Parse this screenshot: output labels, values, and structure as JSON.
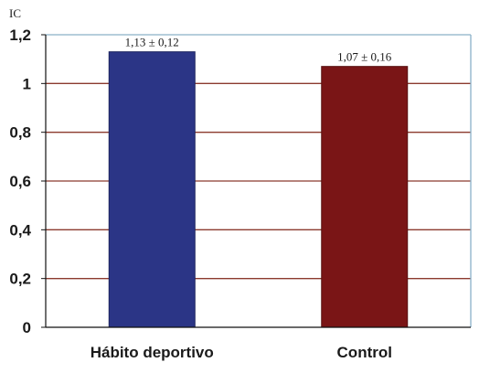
{
  "chart_data": {
    "type": "bar",
    "ylabel": "IC",
    "categories": [
      "Hábito deportivo",
      "Control"
    ],
    "values": [
      1.13,
      1.07
    ],
    "data_labels": [
      "1,13 ± 0,12",
      "1,07 ± 0,16"
    ],
    "ylim": [
      0,
      1.2
    ],
    "yticks": [
      0,
      0.2,
      0.4,
      0.6,
      0.8,
      1,
      1.2
    ],
    "ytick_labels": [
      "0",
      "0,2",
      "0,4",
      "0,6",
      "0,8",
      "1",
      "1,2"
    ],
    "grid": true,
    "legend": "none",
    "colors": {
      "bars": [
        "#2b3586",
        "#7a1516"
      ],
      "bar_edges": [
        "#1c245e",
        "#561010"
      ],
      "gridline": "#8b3a2e",
      "top_gridline": "#8ab0c8",
      "axis": "#111111"
    }
  }
}
